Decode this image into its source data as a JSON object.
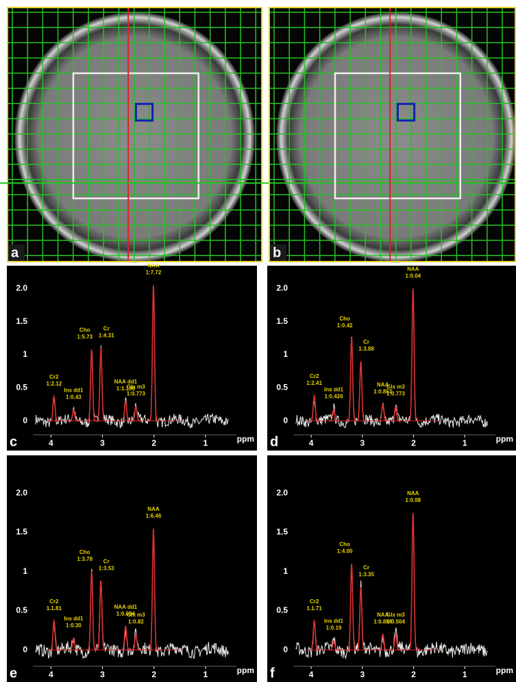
{
  "images": [
    {
      "label": "a"
    },
    {
      "label": "b"
    }
  ],
  "chart_data": [
    {
      "type": "line",
      "panel_label": "c",
      "x_label": "ppm",
      "xlim": [
        4.35,
        0.4
      ],
      "ylim": [
        -0.2,
        2.2
      ],
      "xticks": [
        4,
        3,
        2,
        1
      ],
      "yticks": [
        {
          "value": 2,
          "label": "2.0"
        },
        1.5,
        1,
        0.5,
        0
      ],
      "peaks": [
        {
          "name": "Cr2",
          "label": "1:2.12",
          "x": 3.94,
          "height": 0.37
        },
        {
          "name": "Ins dd1",
          "label": "1:0.43",
          "x": 3.56,
          "height": 0.17
        },
        {
          "name": "Cho",
          "label": "1:5.73",
          "x": 3.21,
          "height": 1.08
        },
        {
          "name": "Cr",
          "label": "1:4.31",
          "x": 3.03,
          "height": 1.1
        },
        {
          "name": "NAA dd1",
          "label": "1:1.130",
          "x": 2.55,
          "height": 0.3
        },
        {
          "name": "Glx m3",
          "label": "1:0.773",
          "x": 2.35,
          "height": 0.22
        },
        {
          "name": "NAA",
          "label": "1:7.72",
          "x": 2.01,
          "height": 2.05
        }
      ]
    },
    {
      "type": "line",
      "panel_label": "d",
      "x_label": "ppm",
      "xlim": [
        4.35,
        0.4
      ],
      "ylim": [
        -0.2,
        2.2
      ],
      "xticks": [
        4,
        3,
        2,
        1
      ],
      "yticks": [
        {
          "value": 2,
          "label": "2.0"
        },
        1.5,
        1,
        0.5,
        0
      ],
      "peaks": [
        {
          "name": "Cr2",
          "label": "1:2.41",
          "x": 3.94,
          "height": 0.38
        },
        {
          "name": "Ins dd1",
          "label": "1:0.426",
          "x": 3.56,
          "height": 0.18
        },
        {
          "name": "Cho",
          "label": "1:0.42",
          "x": 3.21,
          "height": 1.25
        },
        {
          "name": "Cr",
          "label": "1:3.88",
          "x": 3.03,
          "height": 0.9
        },
        {
          "name": "NAA",
          "label": "1:0.853",
          "x": 2.6,
          "height": 0.25
        },
        {
          "name": "Glx m3",
          "label": "1:0.773",
          "x": 2.35,
          "height": 0.22
        },
        {
          "name": "NAA",
          "label": "1:0.04",
          "x": 2.01,
          "height": 2.0
        }
      ]
    },
    {
      "type": "line",
      "panel_label": "e",
      "x_label": "ppm",
      "xlim": [
        4.35,
        0.4
      ],
      "ylim": [
        -0.2,
        2.2
      ],
      "xticks": [
        4,
        3,
        2,
        1
      ],
      "yticks": [
        {
          "value": 2,
          "label": "2.0"
        },
        1.5,
        1,
        0.5,
        0
      ],
      "peaks": [
        {
          "name": "Cr2",
          "label": "1.1.81",
          "x": 3.94,
          "height": 0.37
        },
        {
          "name": "Ins dd1",
          "label": "1:0.30",
          "x": 3.56,
          "height": 0.15
        },
        {
          "name": "Cho",
          "label": "1:3.78",
          "x": 3.21,
          "height": 1.0
        },
        {
          "name": "Cr",
          "label": "1:3.53",
          "x": 3.03,
          "height": 0.88
        },
        {
          "name": "NAA dd1",
          "label": "1:0.084",
          "x": 2.55,
          "height": 0.3
        },
        {
          "name": "Glx m3",
          "label": "1:0.82",
          "x": 2.35,
          "height": 0.2
        },
        {
          "name": "NAA",
          "label": "1:6.46",
          "x": 2.01,
          "height": 1.55
        }
      ]
    },
    {
      "type": "line",
      "panel_label": "f",
      "x_label": "ppm",
      "xlim": [
        4.35,
        0.4
      ],
      "ylim": [
        -0.2,
        2.2
      ],
      "xticks": [
        4,
        3,
        2,
        1
      ],
      "yticks": [
        {
          "value": 2,
          "label": "2.0"
        },
        1.5,
        1,
        0.5,
        0
      ],
      "peaks": [
        {
          "name": "Cr2",
          "label": "1.1.71",
          "x": 3.94,
          "height": 0.37
        },
        {
          "name": "Ins dd1",
          "label": "1:0.19",
          "x": 3.56,
          "height": 0.12
        },
        {
          "name": "Cho",
          "label": "1:4.00",
          "x": 3.21,
          "height": 1.1
        },
        {
          "name": "Cr",
          "label": "1:3.35",
          "x": 3.03,
          "height": 0.8
        },
        {
          "name": "NAA",
          "label": "1:0.886",
          "x": 2.6,
          "height": 0.2
        },
        {
          "name": "Glx m3",
          "label": "1:0.504",
          "x": 2.35,
          "height": 0.2
        },
        {
          "name": "NAA",
          "label": "1:0.08",
          "x": 2.01,
          "height": 1.75
        }
      ]
    }
  ]
}
